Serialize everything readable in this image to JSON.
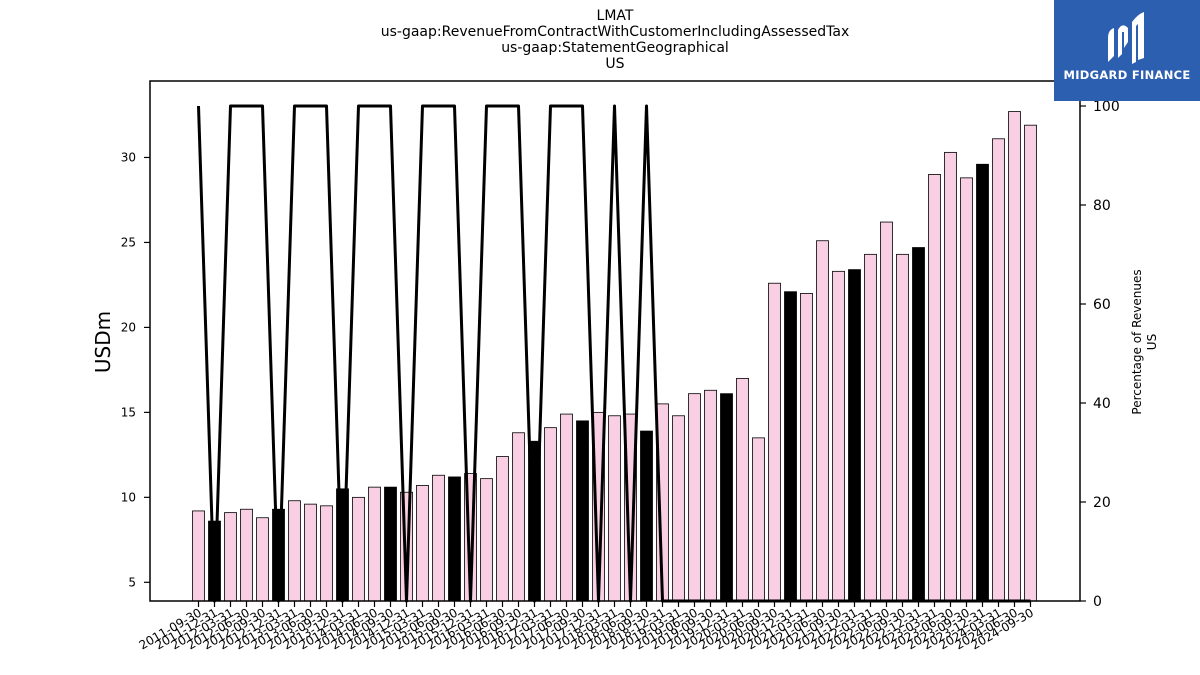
{
  "title": {
    "line1": "LMAT",
    "line2": "us-gaap:RevenueFromContractWithCustomerIncludingAssessedTax",
    "line3": "us-gaap:StatementGeographical",
    "line4": "US"
  },
  "logo": {
    "text": "MIDGARD FINANCE"
  },
  "colors": {
    "highlight_bar": "#000000",
    "normal_bar": "#f9cfe3",
    "line": "#000000",
    "logo_bg": "#2c5fb0"
  },
  "chart_data": {
    "type": "bar",
    "ylabel": "USDm",
    "y2label_line1": "Percentage of Revenues",
    "y2label_line2": "US",
    "ylim": [
      3.9,
      34.5
    ],
    "y2lim": [
      0,
      100
    ],
    "yticks": [
      5,
      10,
      15,
      20,
      25,
      30
    ],
    "y2ticks": [
      0,
      20,
      40,
      60,
      80,
      100
    ],
    "categories": [
      "2011-09-30",
      "2011-12-31",
      "2012-03-31",
      "2012-06-30",
      "2012-09-30",
      "2012-12-31",
      "2013-03-31",
      "2013-06-30",
      "2013-09-30",
      "2013-12-31",
      "2014-03-31",
      "2014-06-30",
      "2014-09-30",
      "2014-12-31",
      "2015-03-31",
      "2015-06-30",
      "2015-09-30",
      "2015-12-31",
      "2016-03-31",
      "2016-06-30",
      "2016-09-30",
      "2016-12-31",
      "2017-03-31",
      "2017-06-30",
      "2017-09-30",
      "2017-12-31",
      "2018-03-31",
      "2018-06-30",
      "2018-09-30",
      "2018-12-31",
      "2019-03-31",
      "2019-06-30",
      "2019-09-30",
      "2019-12-31",
      "2020-03-31",
      "2020-06-30",
      "2020-09-30",
      "2020-12-31",
      "2021-03-31",
      "2021-06-30",
      "2021-09-30",
      "2021-12-31",
      "2022-03-31",
      "2022-06-30",
      "2022-09-30",
      "2022-12-31",
      "2023-03-31",
      "2023-06-30",
      "2023-09-30",
      "2023-12-31",
      "2024-03-31",
      "2024-06-30",
      "2024-09-30"
    ],
    "series": [
      {
        "type": "bar",
        "values": [
          9.2,
          8.6,
          9.1,
          9.3,
          8.8,
          9.3,
          9.8,
          9.6,
          9.5,
          10.5,
          10.0,
          10.6,
          10.6,
          10.3,
          10.7,
          11.3,
          11.2,
          11.4,
          11.1,
          12.4,
          13.8,
          13.3,
          14.1,
          14.9,
          14.5,
          15.0,
          14.8,
          14.9,
          13.9,
          15.5,
          14.8,
          16.1,
          16.3,
          16.1,
          17.0,
          13.5,
          22.6,
          22.1,
          22.0,
          25.1,
          23.3,
          23.4,
          24.3,
          26.2,
          24.3,
          24.7,
          29.0,
          30.3,
          28.8,
          29.6,
          31.1,
          32.7,
          31.9
        ],
        "highlight": [
          false,
          true,
          false,
          false,
          false,
          true,
          false,
          false,
          false,
          true,
          false,
          false,
          true,
          false,
          false,
          false,
          true,
          false,
          false,
          false,
          false,
          true,
          false,
          false,
          true,
          false,
          false,
          false,
          true,
          false,
          false,
          false,
          false,
          true,
          false,
          false,
          false,
          true,
          false,
          false,
          false,
          true,
          false,
          false,
          false,
          true,
          false,
          false,
          false,
          true,
          false,
          false,
          false
        ]
      },
      {
        "type": "line",
        "axis": "right",
        "values": [
          100,
          0,
          100,
          100,
          100,
          0,
          100,
          100,
          100,
          0,
          100,
          100,
          100,
          0,
          100,
          100,
          100,
          0,
          100,
          100,
          100,
          0,
          100,
          100,
          100,
          0,
          100,
          0,
          100,
          0,
          0,
          0,
          0,
          0,
          0,
          0,
          0,
          0,
          0,
          0,
          0,
          0,
          0,
          0,
          0,
          0,
          0,
          0,
          0,
          0,
          0,
          0,
          0
        ]
      }
    ]
  }
}
